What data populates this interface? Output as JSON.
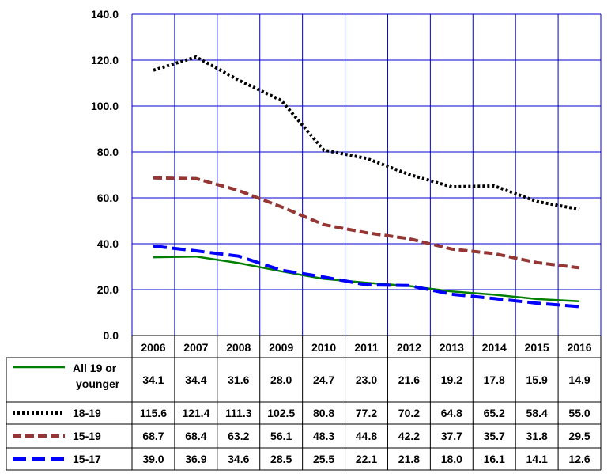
{
  "chart_data": {
    "type": "line",
    "title": "",
    "xlabel": "",
    "ylabel": "",
    "categories": [
      "2006",
      "2007",
      "2008",
      "2009",
      "2010",
      "2011",
      "2012",
      "2013",
      "2014",
      "2015",
      "2016"
    ],
    "ylim": [
      0,
      140
    ],
    "yticks": [
      "0.0",
      "20.0",
      "40.0",
      "60.0",
      "80.0",
      "100.0",
      "120.0",
      "140.0"
    ],
    "grid": true,
    "legend": "data table below plot",
    "series": [
      {
        "name": "All 19 or younger",
        "name_lines": [
          "All 19 or",
          "younger"
        ],
        "color": "#008000",
        "dash": "solid",
        "values": [
          34.1,
          34.4,
          31.6,
          28.0,
          24.7,
          23.0,
          21.6,
          19.2,
          17.8,
          15.9,
          14.9
        ],
        "labels": [
          "34.1",
          "34.4",
          "31.6",
          "28.0",
          "24.7",
          "23.0",
          "21.6",
          "19.2",
          "17.8",
          "15.9",
          "14.9"
        ]
      },
      {
        "name": "18-19",
        "color": "#000000",
        "dash": "dotted",
        "values": [
          115.6,
          121.4,
          111.3,
          102.5,
          80.8,
          77.2,
          70.2,
          64.8,
          65.2,
          58.4,
          55.0
        ],
        "labels": [
          "115.6",
          "121.4",
          "111.3",
          "102.5",
          "80.8",
          "77.2",
          "70.2",
          "64.8",
          "65.2",
          "58.4",
          "55.0"
        ]
      },
      {
        "name": "15-19",
        "color": "#943634",
        "dash": "dashed",
        "values": [
          68.7,
          68.4,
          63.2,
          56.1,
          48.3,
          44.8,
          42.2,
          37.7,
          35.7,
          31.8,
          29.5
        ],
        "labels": [
          "68.7",
          "68.4",
          "63.2",
          "56.1",
          "48.3",
          "44.8",
          "42.2",
          "37.7",
          "35.7",
          "31.8",
          "29.5"
        ]
      },
      {
        "name": "15-17",
        "color": "#0000FF",
        "dash": "longdash",
        "values": [
          39.0,
          36.9,
          34.6,
          28.5,
          25.5,
          22.1,
          21.8,
          18.0,
          16.1,
          14.1,
          12.6
        ],
        "labels": [
          "39.0",
          "36.9",
          "34.6",
          "28.5",
          "25.5",
          "22.1",
          "21.8",
          "18.0",
          "16.1",
          "14.1",
          "12.6"
        ]
      }
    ]
  }
}
